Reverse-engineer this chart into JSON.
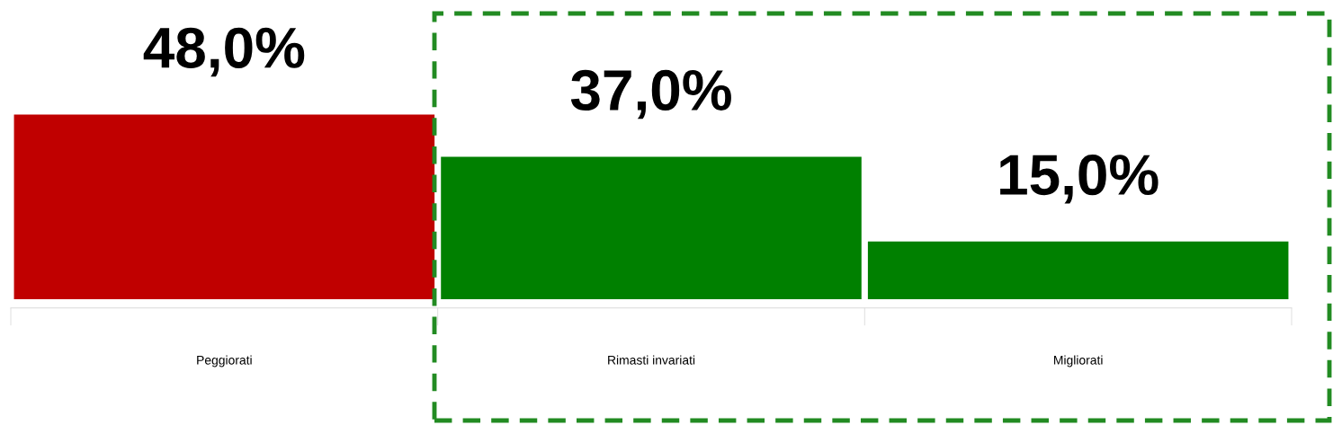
{
  "chart_data": {
    "type": "bar",
    "categories": [
      "Peggiorati",
      "Rimasti invariati",
      "Migliorati"
    ],
    "values": [
      48.0,
      37.0,
      15.0
    ],
    "colors": [
      "#c00000",
      "#008000",
      "#008000"
    ],
    "value_labels": [
      "48,0%",
      "37,0%",
      "15,0%"
    ],
    "grid": false,
    "legend": false
  }
}
